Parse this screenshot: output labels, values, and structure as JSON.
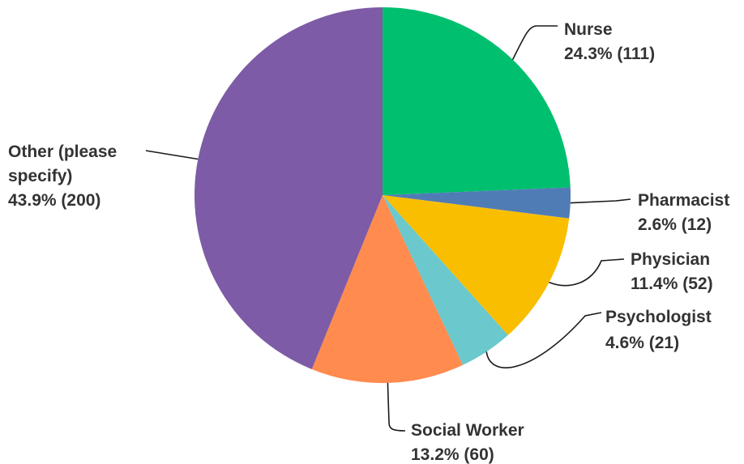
{
  "chart_data": {
    "type": "pie",
    "slices": [
      {
        "label": "Nurse",
        "percent": "24.3%",
        "count": "(111)",
        "value": 111,
        "color": "#00bf6f"
      },
      {
        "label": "Pharmacist",
        "percent": "2.6%",
        "count": "(12)",
        "value": 12,
        "color": "#507cb6"
      },
      {
        "label": "Physician",
        "percent": "11.4%",
        "count": "(52)",
        "value": 52,
        "color": "#f9be00"
      },
      {
        "label": "Psychologist",
        "percent": "4.6%",
        "count": "(21)",
        "value": 21,
        "color": "#6bc8cd"
      },
      {
        "label": "Social Worker",
        "percent": "13.2%",
        "count": "(60)",
        "value": 60,
        "color": "#ff8b4f"
      },
      {
        "label": "Other (please specify)",
        "label_lines": [
          "Other (please",
          "specify)"
        ],
        "percent": "43.9%",
        "count": "(200)",
        "value": 200,
        "color": "#7d5ba6"
      }
    ]
  }
}
